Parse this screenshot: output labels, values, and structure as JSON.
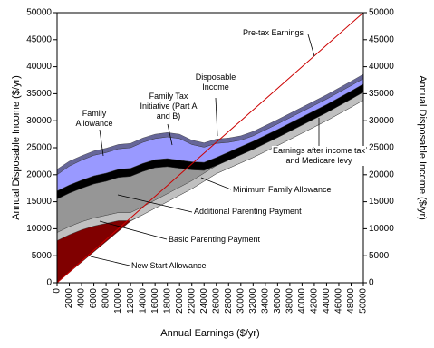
{
  "chart_data": {
    "type": "stacked-area",
    "xlabel": "Annual Earnings ($/yr)",
    "ylabel": "Annual Disposable Income ($/yr)",
    "y2label": "Annual Disposable Income ($/yr)",
    "xlim": [
      0,
      50000
    ],
    "ylim": [
      0,
      50000
    ],
    "y2lim": [
      0,
      50000
    ],
    "xticks": [
      0,
      2000,
      4000,
      6000,
      8000,
      10000,
      12000,
      14000,
      16000,
      18000,
      20000,
      22000,
      24000,
      26000,
      28000,
      30000,
      32000,
      34000,
      36000,
      38000,
      40000,
      42000,
      44000,
      46000,
      48000,
      50000
    ],
    "yticks": [
      0,
      5000,
      10000,
      15000,
      20000,
      25000,
      30000,
      35000,
      40000,
      45000,
      50000
    ],
    "y2ticks": [
      0,
      5000,
      10000,
      15000,
      20000,
      25000,
      30000,
      35000,
      40000,
      45000,
      50000
    ],
    "x": [
      0,
      2000,
      4000,
      6000,
      8000,
      10000,
      12000,
      14000,
      16000,
      18000,
      20000,
      22000,
      24000,
      26000,
      28000,
      30000,
      32000,
      36000,
      40000,
      44000,
      48000,
      50000
    ],
    "series": [
      {
        "name": "Earnings after income tax and Medicare levy",
        "type": "area",
        "color": "#ffffff",
        "values": [
          0,
          1900,
          3800,
          5700,
          7600,
          9500,
          11400,
          12600,
          13800,
          15000,
          16200,
          17400,
          18800,
          20200,
          21200,
          22200,
          23200,
          25400,
          27700,
          30000,
          32500,
          33800
        ]
      },
      {
        "name": "New Start Allowance",
        "type": "area",
        "color": "#800000",
        "values": [
          7800,
          7000,
          6000,
          4800,
          3400,
          2000,
          100,
          0,
          0,
          0,
          0,
          0,
          0,
          0,
          0,
          0,
          0,
          0,
          0,
          0,
          0,
          0
        ]
      },
      {
        "name": "Basic Parenting Payment",
        "type": "area",
        "color": "#c0c0c0",
        "values": [
          1500,
          1500,
          1500,
          1500,
          1500,
          1500,
          1500,
          1500,
          1500,
          1500,
          1500,
          1500,
          1500,
          1500,
          1500,
          1500,
          1500,
          1500,
          1500,
          1500,
          1500,
          1500
        ]
      },
      {
        "name": "Additional Parenting Payment",
        "type": "area",
        "color": "#969696",
        "values": [
          6200,
          6200,
          6200,
          6300,
          6300,
          6500,
          6700,
          6500,
          6000,
          5000,
          3500,
          2000,
          500,
          0,
          0,
          0,
          0,
          0,
          0,
          0,
          0,
          0
        ]
      },
      {
        "name": "Minimum Family Allowance",
        "type": "area",
        "color": "#000000",
        "values": [
          1500,
          1500,
          1500,
          1500,
          1500,
          1500,
          1500,
          1500,
          1500,
          1500,
          1500,
          1500,
          1500,
          1500,
          1500,
          1500,
          1500,
          1500,
          1500,
          1500,
          1500,
          1500
        ]
      },
      {
        "name": "Family Allowance",
        "type": "area",
        "color": "#9999ff",
        "values": [
          3000,
          3500,
          3700,
          3800,
          3800,
          3800,
          3800,
          3900,
          3900,
          4000,
          4000,
          3200,
          2800,
          2600,
          1800,
          1200,
          1000,
          1000,
          1000,
          1000,
          1000,
          1000
        ]
      },
      {
        "name": "Family Tax Initiative (Part A and B)",
        "type": "area",
        "color": "#666699",
        "values": [
          1000,
          900,
          800,
          800,
          800,
          800,
          800,
          800,
          800,
          800,
          800,
          800,
          800,
          800,
          800,
          800,
          800,
          800,
          800,
          800,
          800,
          800
        ]
      },
      {
        "name": "Pre-tax Earnings",
        "type": "line",
        "color": "#cc0000",
        "values": [
          0,
          2000,
          4000,
          6000,
          8000,
          10000,
          12000,
          14000,
          16000,
          18000,
          20000,
          22000,
          24000,
          26000,
          28000,
          30000,
          32000,
          36000,
          40000,
          44000,
          48000,
          50000
        ]
      }
    ],
    "annotations": [
      {
        "text": "Disposable Income"
      }
    ]
  }
}
